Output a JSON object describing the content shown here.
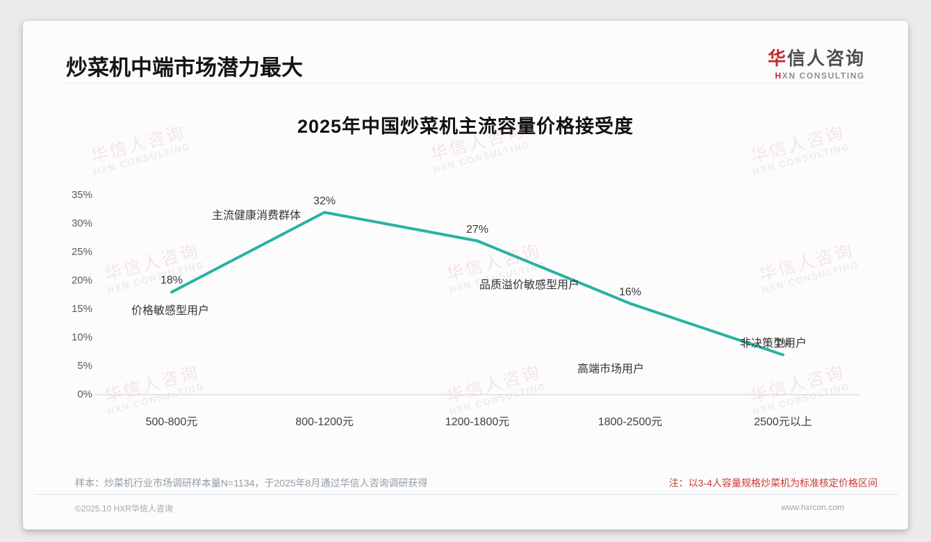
{
  "header": {
    "title": "炒菜机中端市场潜力最大",
    "logo": {
      "cn_first": "华",
      "cn_rest": "信人咨询",
      "en_first": "H",
      "en_rest": "XN CONSULTING"
    }
  },
  "watermark": {
    "cn": "华信人咨询",
    "en": "HXN CONSULTING"
  },
  "chart_data": {
    "type": "line",
    "title": "2025年中国炒菜机主流容量价格接受度",
    "categories": [
      "500-800元",
      "800-1200元",
      "1200-1800元",
      "1800-2500元",
      "2500元以上"
    ],
    "values": [
      18,
      32,
      27,
      16,
      7
    ],
    "point_labels": [
      "18%",
      "32%",
      "27%",
      "16%",
      "7%"
    ],
    "annotations": [
      "价格敏感型用户",
      "主流健康消费群体",
      "品质溢价敏感型用户",
      "高端市场用户",
      "非决策型用户"
    ],
    "xlabel": "",
    "ylabel": "",
    "ylim": [
      0,
      35
    ],
    "ytick_values": [
      35,
      30,
      25,
      20,
      15,
      10,
      5,
      0
    ],
    "ytick_labels": [
      "35%",
      "30%",
      "25%",
      "20%",
      "15%",
      "10%",
      "5%",
      "0%"
    ],
    "grid": false,
    "legend": "none",
    "line_color": "#28b2a2",
    "axis_color": "#dcdcdc"
  },
  "notes": {
    "sample_note": "样本：炒菜机行业市场调研样本量N=1134，于2025年8月通过华信人咨询调研获得",
    "price_note": "注：以3-4人容量规格炒菜机为标准核定价格区间"
  },
  "footer": {
    "copyright": "©2025.10 HXR华信人咨询",
    "website": "www.hxrcon.com"
  }
}
